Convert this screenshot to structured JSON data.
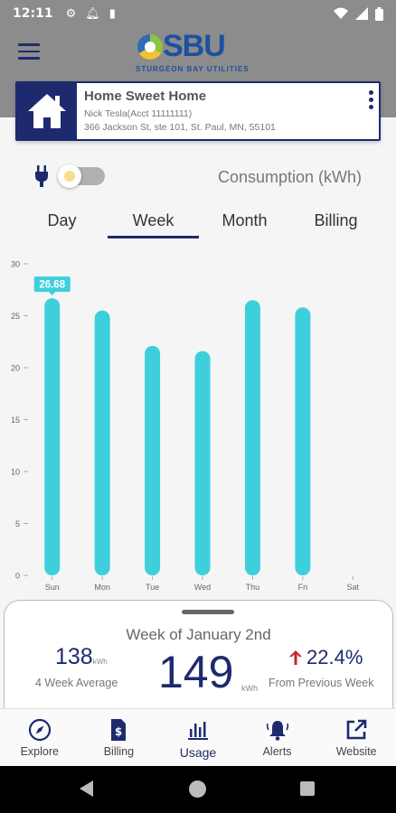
{
  "status": {
    "time": "12:11",
    "icons_left": [
      "gear-icon",
      "bell-icon",
      "sd-card-icon"
    ],
    "icons_right": [
      "wifi-icon",
      "signal-icon",
      "battery-icon"
    ]
  },
  "logo": {
    "text": "SBU",
    "subtitle": "STURGEON BAY UTILITIES"
  },
  "account": {
    "name": "Home Sweet Home",
    "holder": "Nick Tesla(Acct 11111111)",
    "address": "366 Jackson St, ste 101, St. Paul, MN, 55101"
  },
  "controls": {
    "consumption_label": "Consumption (kWh)"
  },
  "tabs": [
    {
      "label": "Day",
      "active": false
    },
    {
      "label": "Week",
      "active": true
    },
    {
      "label": "Month",
      "active": false
    },
    {
      "label": "Billing",
      "active": false
    }
  ],
  "chart_data": {
    "type": "bar",
    "categories": [
      "Sun",
      "Mon",
      "Tue",
      "Wed",
      "Thu",
      "Fri",
      "Sat"
    ],
    "values": [
      26.68,
      25.5,
      22.1,
      21.6,
      26.5,
      25.8,
      0
    ],
    "highlight_index": 0,
    "highlight_label": "26.68",
    "yticks": [
      "30",
      "25",
      "20",
      "15",
      "10",
      "5",
      "0"
    ],
    "ylim": [
      0,
      30
    ],
    "bar_color": "#3ecfdc",
    "label_bg": "#3ecfdc"
  },
  "summary": {
    "week_of": "Week of January 2nd",
    "avg_value": "138",
    "avg_unit": "kWh",
    "avg_label": "4 Week Average",
    "main_value": "149",
    "main_unit": "kWh",
    "pct_value": "22.4%",
    "pct_label": "From Previous Week",
    "pct_direction": "up",
    "pct_color": "#c0272d"
  },
  "nav": [
    {
      "label": "Explore",
      "icon": "compass-icon"
    },
    {
      "label": "Billing",
      "icon": "bill-icon"
    },
    {
      "label": "Usage",
      "icon": "bar-chart-icon",
      "active": true
    },
    {
      "label": "Alerts",
      "icon": "bell-icon"
    },
    {
      "label": "Website",
      "icon": "external-link-icon"
    }
  ]
}
